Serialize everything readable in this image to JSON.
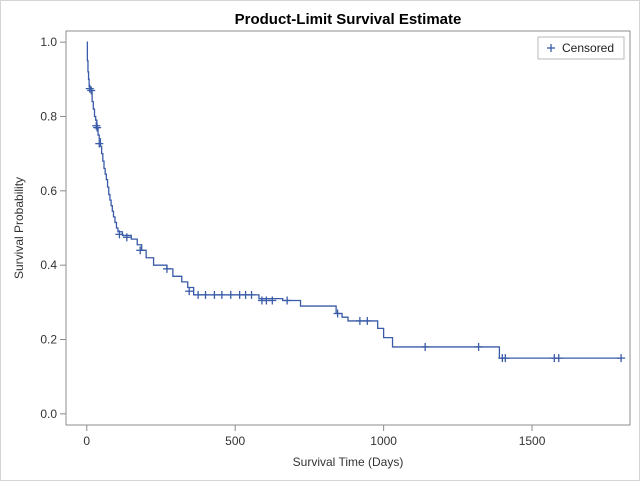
{
  "chart_data": {
    "type": "line",
    "title": "Product-Limit Survival Estimate",
    "xlabel": "Survival Time (Days)",
    "ylabel": "Survival Probability",
    "xlim": [
      -70,
      1830
    ],
    "ylim": [
      -0.03,
      1.03
    ],
    "xticks": [
      0,
      500,
      1000,
      1500
    ],
    "yticks": [
      0.0,
      0.2,
      0.4,
      0.6,
      0.8,
      1.0
    ],
    "ytick_labels": [
      "0.0",
      "0.2",
      "0.4",
      "0.6",
      "0.8",
      "1.0"
    ],
    "grid": false,
    "legend": {
      "position": "top-right",
      "entries": [
        "Censored"
      ]
    },
    "series_color": "#3a5ba8",
    "survival_curve": [
      [
        0,
        1.0
      ],
      [
        2,
        0.95
      ],
      [
        4,
        0.92
      ],
      [
        6,
        0.9
      ],
      [
        8,
        0.88
      ],
      [
        12,
        0.87
      ],
      [
        18,
        0.84
      ],
      [
        22,
        0.82
      ],
      [
        26,
        0.8
      ],
      [
        30,
        0.79
      ],
      [
        34,
        0.77
      ],
      [
        38,
        0.75
      ],
      [
        42,
        0.74
      ],
      [
        46,
        0.72
      ],
      [
        50,
        0.7
      ],
      [
        54,
        0.68
      ],
      [
        58,
        0.66
      ],
      [
        62,
        0.645
      ],
      [
        66,
        0.63
      ],
      [
        70,
        0.61
      ],
      [
        74,
        0.59
      ],
      [
        78,
        0.575
      ],
      [
        82,
        0.56
      ],
      [
        86,
        0.545
      ],
      [
        90,
        0.53
      ],
      [
        95,
        0.515
      ],
      [
        100,
        0.5
      ],
      [
        105,
        0.49
      ],
      [
        120,
        0.48
      ],
      [
        150,
        0.47
      ],
      [
        170,
        0.455
      ],
      [
        185,
        0.44
      ],
      [
        200,
        0.42
      ],
      [
        225,
        0.4
      ],
      [
        270,
        0.39
      ],
      [
        290,
        0.37
      ],
      [
        320,
        0.355
      ],
      [
        340,
        0.34
      ],
      [
        360,
        0.32
      ],
      [
        580,
        0.31
      ],
      [
        660,
        0.305
      ],
      [
        720,
        0.29
      ],
      [
        840,
        0.27
      ],
      [
        860,
        0.26
      ],
      [
        880,
        0.25
      ],
      [
        980,
        0.23
      ],
      [
        1000,
        0.205
      ],
      [
        1030,
        0.18
      ],
      [
        1390,
        0.15
      ],
      [
        1800,
        0.15
      ]
    ],
    "censored_points": [
      [
        10,
        0.875
      ],
      [
        15,
        0.87
      ],
      [
        32,
        0.775
      ],
      [
        35,
        0.77
      ],
      [
        42,
        0.727
      ],
      [
        110,
        0.483
      ],
      [
        135,
        0.475
      ],
      [
        180,
        0.44
      ],
      [
        270,
        0.39
      ],
      [
        345,
        0.33
      ],
      [
        375,
        0.32
      ],
      [
        400,
        0.32
      ],
      [
        430,
        0.32
      ],
      [
        455,
        0.32
      ],
      [
        485,
        0.32
      ],
      [
        515,
        0.32
      ],
      [
        535,
        0.32
      ],
      [
        555,
        0.32
      ],
      [
        590,
        0.305
      ],
      [
        605,
        0.305
      ],
      [
        625,
        0.305
      ],
      [
        675,
        0.305
      ],
      [
        845,
        0.27
      ],
      [
        920,
        0.25
      ],
      [
        945,
        0.25
      ],
      [
        1140,
        0.18
      ],
      [
        1320,
        0.18
      ],
      [
        1400,
        0.15
      ],
      [
        1410,
        0.15
      ],
      [
        1575,
        0.15
      ],
      [
        1590,
        0.15
      ],
      [
        1800,
        0.15
      ]
    ]
  }
}
